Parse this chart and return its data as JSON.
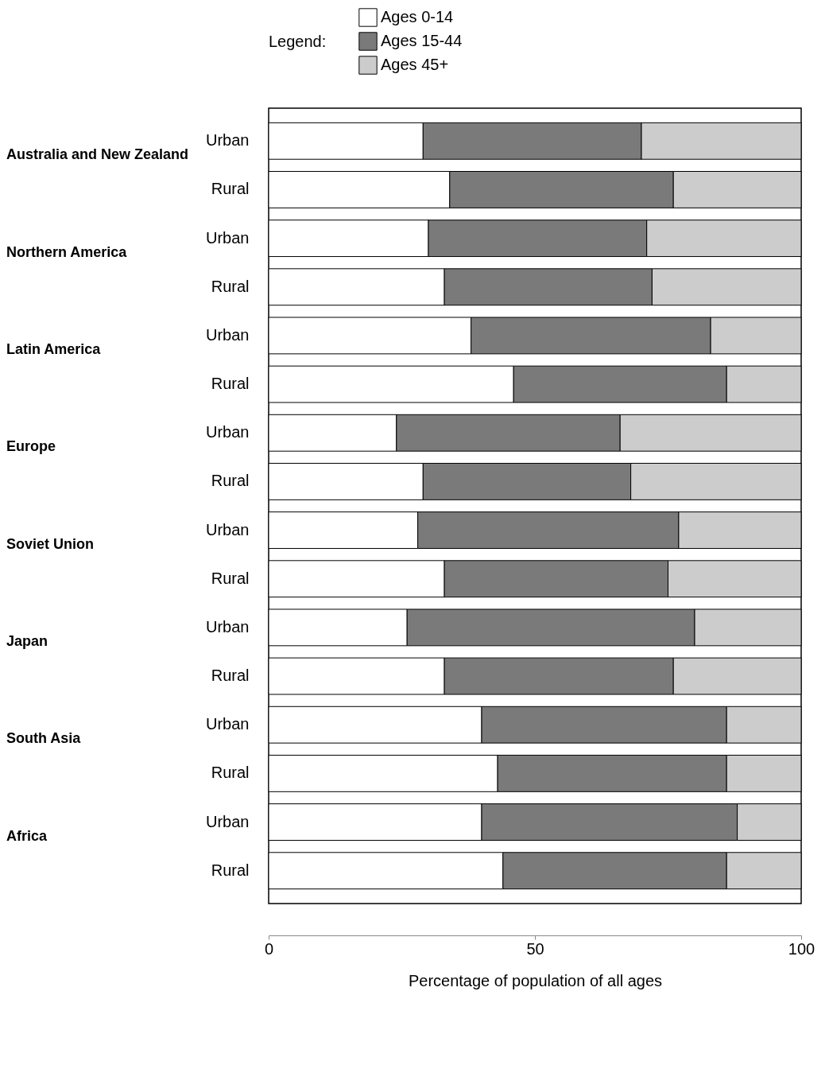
{
  "chart_data": {
    "type": "bar",
    "orientation": "horizontal",
    "stacked": true,
    "legend": "top",
    "legend_title": "Legend:",
    "xlabel": "Percentage of population of all ages",
    "xlim": [
      0,
      100
    ],
    "xticks": [
      0,
      50,
      100
    ],
    "categories": [
      "Urban",
      "Rural",
      "Urban",
      "Rural",
      "Urban",
      "Rural",
      "Urban",
      "Rural",
      "Urban",
      "Rural",
      "Urban",
      "Rural",
      "Urban",
      "Rural",
      "Urban",
      "Rural"
    ],
    "series": [
      {
        "name": "Ages 0-14",
        "color": "#ffffff",
        "values": [
          29,
          34,
          30,
          33,
          38,
          46,
          24,
          29,
          28,
          33,
          26,
          33,
          40,
          43,
          40,
          44
        ]
      },
      {
        "name": "Ages 15-44",
        "color": "#7a7a7a",
        "values": [
          41,
          42,
          41,
          39,
          45,
          40,
          42,
          39,
          49,
          42,
          54,
          43,
          46,
          43,
          48,
          42
        ]
      },
      {
        "name": "Ages 45+",
        "color": "#cccccc",
        "values": [
          30,
          24,
          29,
          28,
          17,
          14,
          34,
          32,
          23,
          25,
          20,
          24,
          14,
          14,
          12,
          14
        ]
      }
    ],
    "annotations": [
      "Australia and New Zealand",
      "Northern America",
      "Latin America",
      "Europe",
      "Soviet Union",
      "Japan",
      "South Asia",
      "Africa"
    ]
  }
}
